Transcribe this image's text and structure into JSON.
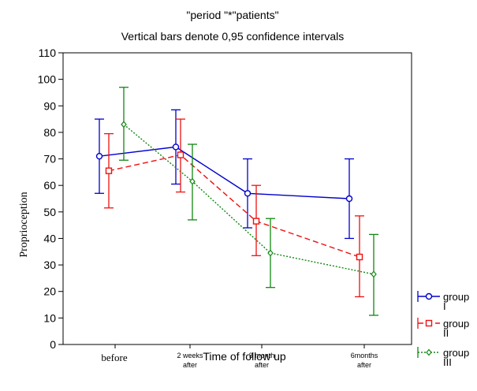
{
  "chart_data": {
    "type": "line",
    "title": "\"period \"*\"patients\"",
    "subtitle": "Vertical bars denote 0,95 confidence intervals",
    "xlabel": "Time of follow up",
    "ylabel": "Proprioception",
    "categories": [
      {
        "line1": "before",
        "line2": ""
      },
      {
        "line1": "2 weeks",
        "line2": "after"
      },
      {
        "line1": "3 month",
        "line2": "after"
      },
      {
        "line1": "6months",
        "line2": "after"
      }
    ],
    "ylim": [
      0,
      110
    ],
    "yticks": [
      "0",
      "10",
      "20",
      "30",
      "40",
      "50",
      "60",
      "70",
      "80",
      "90",
      "100",
      "110"
    ],
    "grid": false,
    "legend_position": "bottom-right",
    "series": [
      {
        "name_line1": "group",
        "name_line2": "I",
        "color": "#0000cc",
        "dash": "solid",
        "marker": "circle",
        "values": [
          71,
          74.5,
          57,
          55
        ],
        "ci_low": [
          57,
          60.5,
          44,
          40
        ],
        "ci_high": [
          85,
          88.5,
          70,
          70
        ]
      },
      {
        "name_line1": "group",
        "name_line2": "II",
        "color": "#ee1111",
        "dash": "dashed",
        "marker": "square",
        "values": [
          65.5,
          71.5,
          46.5,
          33
        ],
        "ci_low": [
          51.5,
          57.5,
          33.5,
          18
        ],
        "ci_high": [
          79.5,
          85,
          60,
          48.5
        ]
      },
      {
        "name_line1": "group",
        "name_line2": "III",
        "color": "#118811",
        "dash": "dotted",
        "marker": "diamond",
        "values": [
          83,
          61.5,
          34.5,
          26.5
        ],
        "ci_low": [
          69.5,
          47,
          21.5,
          11
        ],
        "ci_high": [
          97,
          75.5,
          47.5,
          41.5
        ]
      }
    ]
  }
}
